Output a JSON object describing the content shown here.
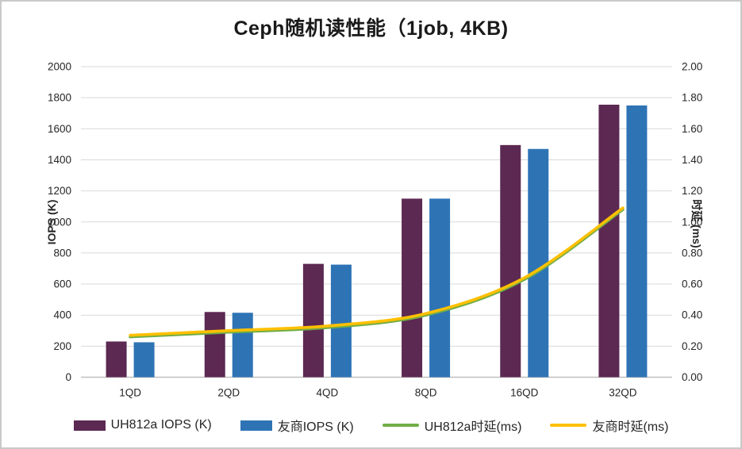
{
  "title": "Ceph随机读性能（1job, 4KB)",
  "chart_data": {
    "type": "bar",
    "subtype": "combo-bar-line-dual-axis",
    "title": "Ceph随机读性能（1job, 4KB)",
    "categories": [
      "1QD",
      "2QD",
      "4QD",
      "8QD",
      "16QD",
      "32QD"
    ],
    "series": [
      {
        "name": "UH812a IOPS (K)",
        "type": "bar",
        "axis": "left",
        "color": "#5C2952",
        "values": [
          230,
          420,
          730,
          1150,
          1495,
          1755
        ]
      },
      {
        "name": "友商IOPS (K)",
        "type": "bar",
        "axis": "left",
        "color": "#2E74B5",
        "values": [
          225,
          415,
          725,
          1150,
          1470,
          1750
        ]
      },
      {
        "name": "UH812a时延(ms)",
        "type": "line",
        "axis": "right",
        "color": "#70AD47",
        "values": [
          0.26,
          0.29,
          0.32,
          0.4,
          0.63,
          1.08
        ]
      },
      {
        "name": "友商时延(ms)",
        "type": "line",
        "axis": "right",
        "color": "#FFC000",
        "values": [
          0.27,
          0.3,
          0.33,
          0.41,
          0.64,
          1.09
        ]
      }
    ],
    "left_axis": {
      "label": "IOPS (K)",
      "min": 0,
      "max": 2000,
      "step": 200,
      "decimals": 0
    },
    "right_axis": {
      "label": "时延 (ms)",
      "min": 0,
      "max": 2.0,
      "step": 0.2,
      "decimals": 2
    },
    "grid": true,
    "legend_position": "bottom"
  },
  "colors": {
    "gridline": "#D9D9D9",
    "axis_line": "#BFBFBF",
    "tick_text": "#262626",
    "frame_border": "#C9C9C9",
    "background": "#FFFFFF"
  }
}
